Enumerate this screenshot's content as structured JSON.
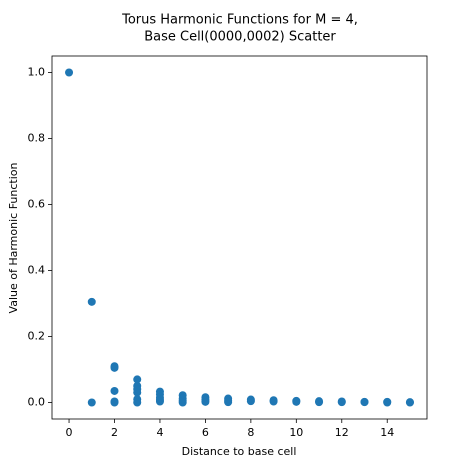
{
  "chart_data": {
    "type": "scatter",
    "title": [
      "Torus Harmonic Functions for M = 4,",
      "Base Cell(0000,0002) Scatter"
    ],
    "x_label": "Distance to base cell",
    "y_label": "Value of Harmonic Function",
    "xlim": [
      -0.75,
      15.75
    ],
    "ylim": [
      -0.05,
      1.05
    ],
    "xticks": [
      0,
      2,
      4,
      6,
      8,
      10,
      12,
      14
    ],
    "yticks": [
      {
        "value": 0,
        "label": "0.0"
      },
      {
        "value": 0.2,
        "label": "0.2"
      },
      {
        "value": 0.4,
        "label": "0.4"
      },
      {
        "value": 0.6,
        "label": "0.6"
      },
      {
        "value": 0.8,
        "label": "0.8"
      },
      {
        "value": 1.0,
        "label": "1.0"
      }
    ],
    "grid": false,
    "series": [
      {
        "color": "#1f77b4",
        "x": [
          0,
          1,
          1,
          2,
          2,
          2,
          2,
          2,
          3,
          3,
          3,
          3,
          3,
          3,
          4,
          4,
          4,
          4,
          4,
          5,
          5,
          5,
          5,
          6,
          6,
          6,
          7,
          7,
          7,
          8,
          8,
          9,
          9,
          10,
          10,
          11,
          11,
          12,
          12,
          13,
          13,
          14,
          14,
          15,
          15
        ],
        "values": [
          1.0,
          0.305,
          0.0,
          0.11,
          0.105,
          0.035,
          0.003,
          0.0,
          0.07,
          0.05,
          0.04,
          0.03,
          0.01,
          0.0,
          0.033,
          0.025,
          0.015,
          0.008,
          0.003,
          0.022,
          0.012,
          0.005,
          0.0,
          0.016,
          0.008,
          0.002,
          0.012,
          0.005,
          0.001,
          0.009,
          0.004,
          0.007,
          0.003,
          0.005,
          0.002,
          0.004,
          0.001,
          0.003,
          0.001,
          0.002,
          0.001,
          0.002,
          0.0,
          0.001,
          0.0
        ]
      }
    ]
  }
}
